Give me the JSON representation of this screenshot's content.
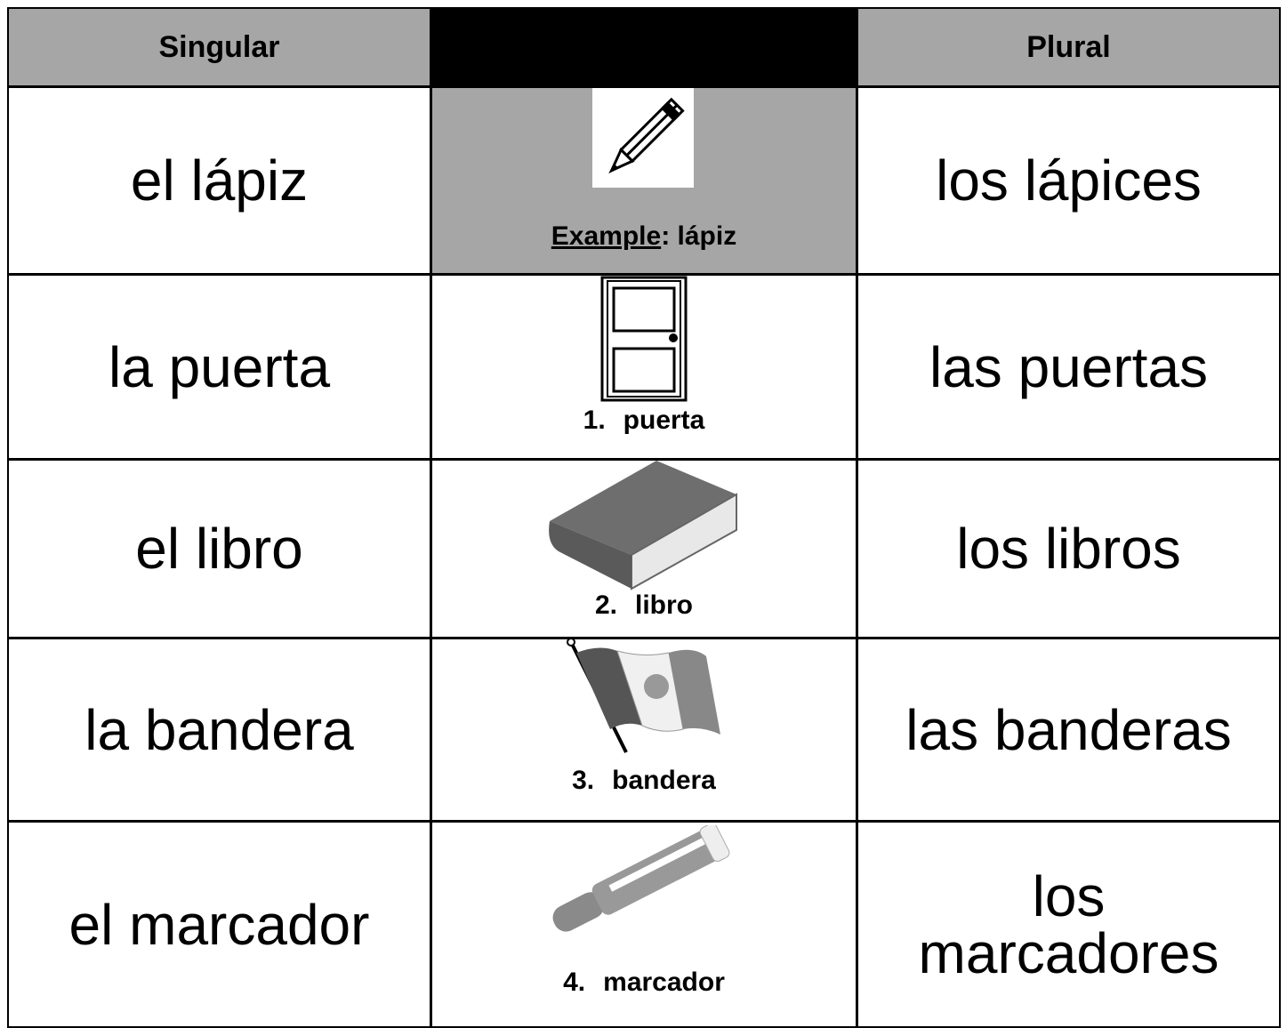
{
  "table": {
    "header": [
      "Singular",
      "Plural"
    ],
    "rows": [
      {
        "singular": "el lápiz",
        "plural": "los lápices",
        "label": "Example",
        "word": ": lápiz"
      },
      {
        "singular": "la puerta",
        "plural": "las puertas",
        "number": "1.",
        "word": "puerta"
      },
      {
        "singular": "el libro",
        "plural": "los libros",
        "number": "2.",
        "word": "libro"
      },
      {
        "singular": "la bandera",
        "plural": "las banderas",
        "number": "3.",
        "word": "bandera"
      },
      {
        "singular": "el marcador",
        "plural": "los marcadores",
        "number": "4.",
        "word": "marcador"
      }
    ]
  }
}
